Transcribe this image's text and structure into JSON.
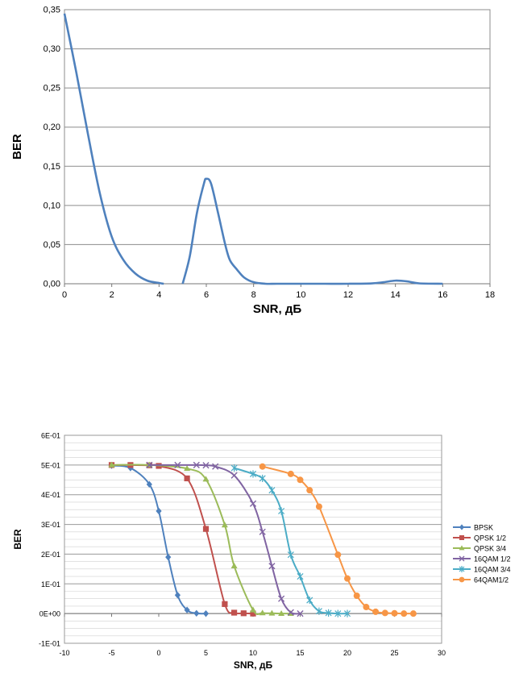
{
  "chart_data": [
    {
      "type": "line",
      "title": "",
      "xlabel": "SNR, дБ",
      "ylabel": "BER",
      "xlim": [
        0,
        18
      ],
      "ylim": [
        0,
        0.35
      ],
      "x_ticks": [
        "0",
        "2",
        "4",
        "6",
        "8",
        "10",
        "12",
        "14",
        "16",
        "18"
      ],
      "y_ticks": [
        "0,00",
        "0,05",
        "0,10",
        "0,15",
        "0,20",
        "0,25",
        "0,30",
        "0,35"
      ],
      "grid": "horizontal",
      "legend": "none",
      "color": "#4f81bd",
      "series": [
        {
          "x": [
            0,
            0.5,
            1,
            1.5,
            2,
            2.5,
            3,
            3.5,
            4,
            4.2,
            4.6,
            5.0,
            5.3,
            5.6,
            5.9,
            6.0,
            6.2,
            6.5,
            6.8,
            7.0,
            7.3,
            7.6,
            8.0,
            8.5,
            9,
            10,
            11,
            12,
            13,
            13.5,
            14,
            14.5,
            15,
            16
          ],
          "y": [
            0.345,
            0.27,
            0.19,
            0.115,
            0.06,
            0.03,
            0.013,
            0.004,
            0.001,
            0,
            null,
            0,
            0.035,
            0.09,
            0.128,
            0.134,
            0.128,
            0.09,
            0.05,
            0.03,
            0.018,
            0.008,
            0.002,
            0,
            0,
            0,
            0,
            0,
            0.0005,
            0.002,
            0.004,
            0.003,
            0.0005,
            0
          ]
        }
      ]
    },
    {
      "type": "line",
      "title": "",
      "xlabel": "SNR, дБ",
      "ylabel": "BER",
      "xlim": [
        -10,
        30
      ],
      "ylim": [
        -0.1,
        0.6
      ],
      "x_ticks": [
        "-10",
        "-5",
        "0",
        "5",
        "10",
        "15",
        "20",
        "25",
        "30"
      ],
      "y_ticks": [
        "-1E-01",
        "0E+00",
        "1E-01",
        "2E-01",
        "3E-01",
        "4E-01",
        "5E-01",
        "6E-01"
      ],
      "grid": "horizontal",
      "legend": "right",
      "series": [
        {
          "name": "BPSK",
          "color": "#4f81bd",
          "marker": "diamond",
          "x": [
            -5,
            -3,
            -1,
            0,
            1,
            2,
            3,
            4,
            5
          ],
          "y": [
            0.498,
            0.49,
            0.435,
            0.345,
            0.19,
            0.062,
            0.012,
            0.001,
            0.0
          ]
        },
        {
          "name": "QPSK 1/2",
          "color": "#c0504d",
          "marker": "square",
          "x": [
            -5,
            -3,
            -1,
            0,
            3,
            5,
            7,
            8,
            9,
            10
          ],
          "y": [
            0.5,
            0.5,
            0.499,
            0.497,
            0.455,
            0.285,
            0.032,
            0.003,
            0.001,
            0.0
          ]
        },
        {
          "name": "QPSK 3/4",
          "color": "#9bbb59",
          "marker": "triangle",
          "x": [
            -5,
            -1,
            3,
            5,
            7,
            8,
            10,
            11,
            12,
            13,
            14
          ],
          "y": [
            0.5,
            0.5,
            0.488,
            0.452,
            0.298,
            0.16,
            0.012,
            0.002,
            0.001,
            0.0,
            0.0
          ]
        },
        {
          "name": "16QAM 1/2",
          "color": "#8064a2",
          "marker": "x",
          "x": [
            -1,
            2,
            4,
            5,
            6,
            8,
            10,
            11,
            12,
            13,
            14,
            15
          ],
          "y": [
            0.5,
            0.5,
            0.5,
            0.499,
            0.495,
            0.465,
            0.37,
            0.275,
            0.16,
            0.05,
            0.004,
            0.0
          ]
        },
        {
          "name": "16QAM 3/4",
          "color": "#4bacc6",
          "marker": "star",
          "x": [
            8,
            10,
            11,
            12,
            13,
            14,
            15,
            16,
            17,
            18,
            19,
            20
          ],
          "y": [
            0.49,
            0.47,
            0.455,
            0.415,
            0.345,
            0.198,
            0.125,
            0.045,
            0.008,
            0.002,
            0.0,
            0.0
          ]
        },
        {
          "name": "64QAM1/2",
          "color": "#f79646",
          "marker": "circle",
          "x": [
            11,
            14,
            15,
            16,
            17,
            19,
            20,
            21,
            22,
            23,
            24,
            25,
            26,
            27
          ],
          "y": [
            0.495,
            0.47,
            0.45,
            0.415,
            0.36,
            0.198,
            0.118,
            0.06,
            0.022,
            0.006,
            0.002,
            0.001,
            0.0,
            0.0
          ]
        }
      ]
    }
  ]
}
